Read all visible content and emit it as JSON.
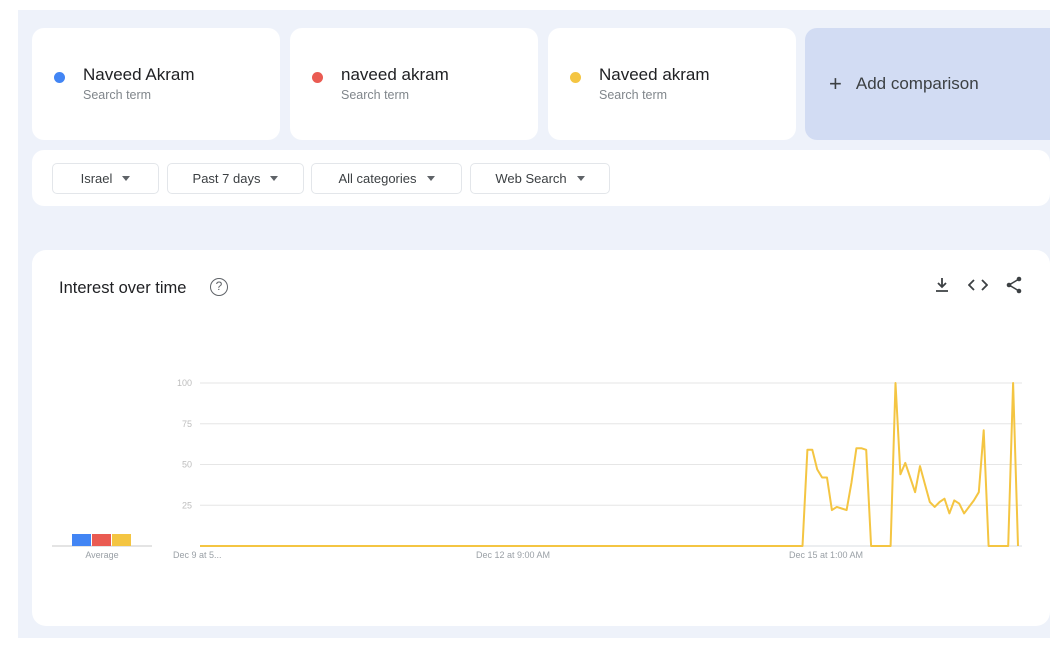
{
  "terms": [
    {
      "label": "Naveed Akram",
      "sub": "Search term",
      "color": "#4285f4"
    },
    {
      "label": "naveed akram",
      "sub": "Search term",
      "color": "#ea5b52"
    },
    {
      "label": "Naveed akram",
      "sub": "Search term",
      "color": "#f4c542"
    }
  ],
  "add_comparison": {
    "icon": "plus-icon",
    "label": "Add comparison"
  },
  "filters": [
    "Israel",
    "Past 7 days",
    "All categories",
    "Web Search"
  ],
  "chart_section": {
    "title": "Interest over time",
    "help_icon": "?",
    "tools": [
      "download-icon",
      "embed-icon",
      "share-icon"
    ]
  },
  "chart_data": {
    "type": "line",
    "title": "Interest over time",
    "ylim": [
      0,
      100
    ],
    "yticks": [
      "100",
      "75",
      "50",
      "25"
    ],
    "grid": true,
    "x_tick_labels": [
      "Dec 9 at 5...",
      "Dec 12 at 9:00 AM",
      "Dec 15 at 1:00 AM"
    ],
    "x_range": [
      "Dec 9 17:00",
      "Dec 16 16:00"
    ],
    "average_label": "Average",
    "series": [
      {
        "name": "Naveed Akram",
        "color": "#4285f4",
        "points": []
      },
      {
        "name": "naveed akram",
        "color": "#ea5b52",
        "points": []
      },
      {
        "name": "Naveed akram",
        "color": "#f4c542",
        "points": [
          [
            "Dec 9 17:00",
            0
          ],
          [
            "Dec 14 20:00",
            0
          ],
          [
            "Dec 14 21:00",
            59
          ],
          [
            "Dec 14 22:00",
            59
          ],
          [
            "Dec 14 23:00",
            47
          ],
          [
            "Dec 15 00:00",
            42
          ],
          [
            "Dec 15 01:00",
            42
          ],
          [
            "Dec 15 02:00",
            22
          ],
          [
            "Dec 15 03:00",
            24
          ],
          [
            "Dec 15 04:00",
            23
          ],
          [
            "Dec 15 05:00",
            22
          ],
          [
            "Dec 15 06:00",
            39
          ],
          [
            "Dec 15 07:00",
            60
          ],
          [
            "Dec 15 08:00",
            60
          ],
          [
            "Dec 15 09:00",
            59
          ],
          [
            "Dec 15 10:00",
            0
          ],
          [
            "Dec 15 14:00",
            0
          ],
          [
            "Dec 15 15:00",
            100
          ],
          [
            "Dec 15 16:00",
            44
          ],
          [
            "Dec 15 17:00",
            51
          ],
          [
            "Dec 15 18:00",
            42
          ],
          [
            "Dec 15 19:00",
            33
          ],
          [
            "Dec 15 20:00",
            49
          ],
          [
            "Dec 15 21:00",
            38
          ],
          [
            "Dec 15 22:00",
            27
          ],
          [
            "Dec 15 23:00",
            24
          ],
          [
            "Dec 16 00:00",
            27
          ],
          [
            "Dec 16 01:00",
            29
          ],
          [
            "Dec 16 02:00",
            20
          ],
          [
            "Dec 16 03:00",
            28
          ],
          [
            "Dec 16 04:00",
            26
          ],
          [
            "Dec 16 05:00",
            20
          ],
          [
            "Dec 16 06:00",
            24
          ],
          [
            "Dec 16 07:00",
            28
          ],
          [
            "Dec 16 08:00",
            33
          ],
          [
            "Dec 16 09:00",
            71
          ],
          [
            "Dec 16 10:00",
            0
          ],
          [
            "Dec 16 14:00",
            0
          ],
          [
            "Dec 16 15:00",
            100
          ],
          [
            "Dec 16 16:00",
            0
          ]
        ]
      }
    ]
  }
}
